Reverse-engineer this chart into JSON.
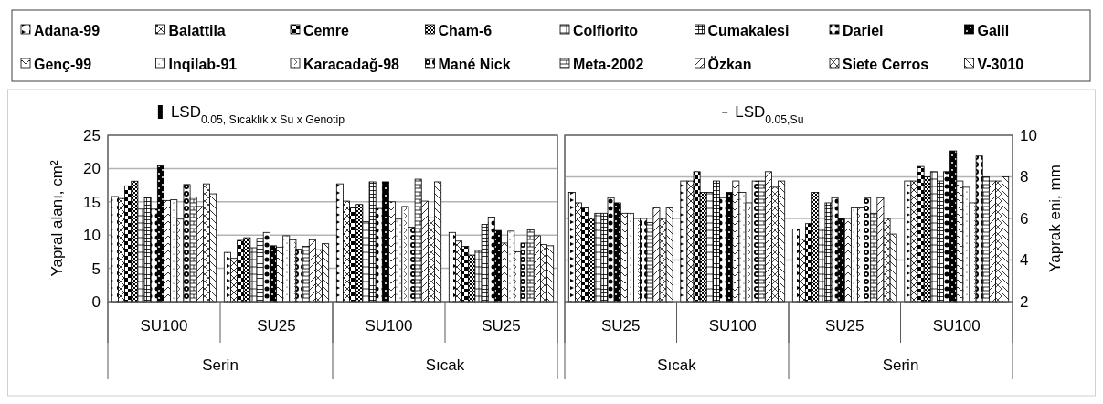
{
  "chart_data": [
    {
      "type": "bar",
      "title": "LSD$_{0.05, Sıcaklık x Su x Genotip}$",
      "ylabel": "Yapral alanı, cm²",
      "categories": [
        "SU100",
        "SU25",
        "SU100",
        "SU25"
      ],
      "annotations": [
        "Serin",
        "Sıcak"
      ],
      "ylim": [
        0,
        25
      ],
      "yticks": [
        0,
        5,
        10,
        15,
        20,
        25
      ],
      "grid": "y",
      "legend": "top",
      "series": [
        {
          "name": "Adana-99",
          "color": "#000000",
          "values": [
            15.8,
            7.4,
            17.7,
            10.4
          ]
        },
        {
          "name": "Balattila",
          "color": "#000000",
          "values": [
            15.5,
            6.5,
            15.1,
            9.1
          ]
        },
        {
          "name": "Cemre",
          "color": "#000000",
          "values": [
            17.4,
            9.2,
            14.1,
            8.3
          ]
        },
        {
          "name": "Cham-6",
          "color": "#000000",
          "values": [
            18.1,
            9.6,
            14.6,
            7.0
          ]
        },
        {
          "name": "Colfiorito",
          "color": "#000000",
          "values": [
            13.9,
            8.1,
            12.0,
            7.7
          ]
        },
        {
          "name": "Cumakalesi",
          "color": "#000000",
          "values": [
            15.6,
            9.5,
            18.0,
            11.6
          ]
        },
        {
          "name": "Dariel",
          "color": "#000000",
          "values": [
            13.9,
            10.4,
            14.0,
            12.7
          ]
        },
        {
          "name": "Galil",
          "color": "#000000",
          "values": [
            20.4,
            8.4,
            18.0,
            10.7
          ]
        },
        {
          "name": "Genç-99",
          "color": "#000000",
          "values": [
            15.2,
            8.2,
            15.0,
            8.8
          ]
        },
        {
          "name": "Inqilab-91",
          "color": "#000000",
          "values": [
            15.3,
            9.9,
            12.4,
            10.6
          ]
        },
        {
          "name": "Karacadağ-98",
          "color": "#000000",
          "values": [
            12.4,
            9.3,
            14.3,
            7.5
          ]
        },
        {
          "name": "Mané Nick",
          "color": "#000000",
          "values": [
            17.6,
            7.9,
            11.2,
            8.8
          ]
        },
        {
          "name": "Meta-2002",
          "color": "#000000",
          "values": [
            15.7,
            8.3,
            18.4,
            10.8
          ]
        },
        {
          "name": "Özkan",
          "color": "#000000",
          "values": [
            14.3,
            9.3,
            15.1,
            9.9
          ]
        },
        {
          "name": "Siete Cerros",
          "color": "#000000",
          "values": [
            17.7,
            7.8,
            12.6,
            8.6
          ]
        },
        {
          "name": "V-3010",
          "color": "#000000",
          "values": [
            16.2,
            8.7,
            18.0,
            8.4
          ]
        }
      ]
    },
    {
      "type": "bar",
      "title": "LSD$_{0.05,Su}$",
      "y2label": "Yaprak eni, mm",
      "categories": [
        "SU25",
        "SU100",
        "SU25",
        "SU100"
      ],
      "annotations": [
        "Sıcak",
        "Serin"
      ],
      "y2lim": [
        2,
        10
      ],
      "y2ticks": [
        2,
        4,
        6,
        8,
        10
      ],
      "grid": "y",
      "series": [
        {
          "name": "Adana-99",
          "color": "#000000",
          "axis": "y2",
          "values": [
            7.25,
            7.8,
            5.5,
            7.8
          ]
        },
        {
          "name": "Balattila",
          "color": "#000000",
          "axis": "y2",
          "values": [
            6.75,
            7.8,
            5.0,
            7.8
          ]
        },
        {
          "name": "Cemre",
          "color": "#000000",
          "axis": "y2",
          "values": [
            6.5,
            8.25,
            5.75,
            8.5
          ]
        },
        {
          "name": "Cham-6",
          "color": "#000000",
          "axis": "y2",
          "values": [
            6.0,
            7.25,
            7.25,
            8.0
          ]
        },
        {
          "name": "Colfiorito",
          "color": "#000000",
          "axis": "y2",
          "values": [
            6.25,
            7.25,
            5.5,
            8.25
          ]
        },
        {
          "name": "Cumakalesi",
          "color": "#000000",
          "axis": "y2",
          "values": [
            6.25,
            7.8,
            6.75,
            7.8
          ]
        },
        {
          "name": "Dariel",
          "color": "#000000",
          "axis": "y2",
          "values": [
            7.0,
            7.0,
            7.0,
            8.25
          ]
        },
        {
          "name": "Galil",
          "color": "#000000",
          "axis": "y2",
          "values": [
            6.75,
            7.25,
            6.0,
            9.25
          ]
        },
        {
          "name": "Genç-99",
          "color": "#000000",
          "axis": "y2",
          "values": [
            6.25,
            7.8,
            6.0,
            7.8
          ]
        },
        {
          "name": "Inqilab-91",
          "color": "#000000",
          "axis": "y2",
          "values": [
            6.25,
            7.25,
            6.5,
            7.5
          ]
        },
        {
          "name": "Karacadağ-98",
          "color": "#000000",
          "axis": "y2",
          "values": [
            6.0,
            6.75,
            6.5,
            6.75
          ]
        },
        {
          "name": "Mané Nick",
          "color": "#000000",
          "axis": "y2",
          "values": [
            6.0,
            7.8,
            7.0,
            9.0
          ]
        },
        {
          "name": "Meta-2002",
          "color": "#000000",
          "axis": "y2",
          "values": [
            5.8,
            7.8,
            6.25,
            8.0
          ]
        },
        {
          "name": "Özkan",
          "color": "#000000",
          "axis": "y2",
          "values": [
            6.5,
            8.25,
            7.0,
            7.8
          ]
        },
        {
          "name": "Siete Cerros",
          "color": "#000000",
          "axis": "y2",
          "values": [
            6.0,
            7.5,
            6.0,
            7.8
          ]
        },
        {
          "name": "V-3010",
          "color": "#000000",
          "axis": "y2",
          "values": [
            6.5,
            7.8,
            5.25,
            8.0
          ]
        }
      ]
    }
  ]
}
